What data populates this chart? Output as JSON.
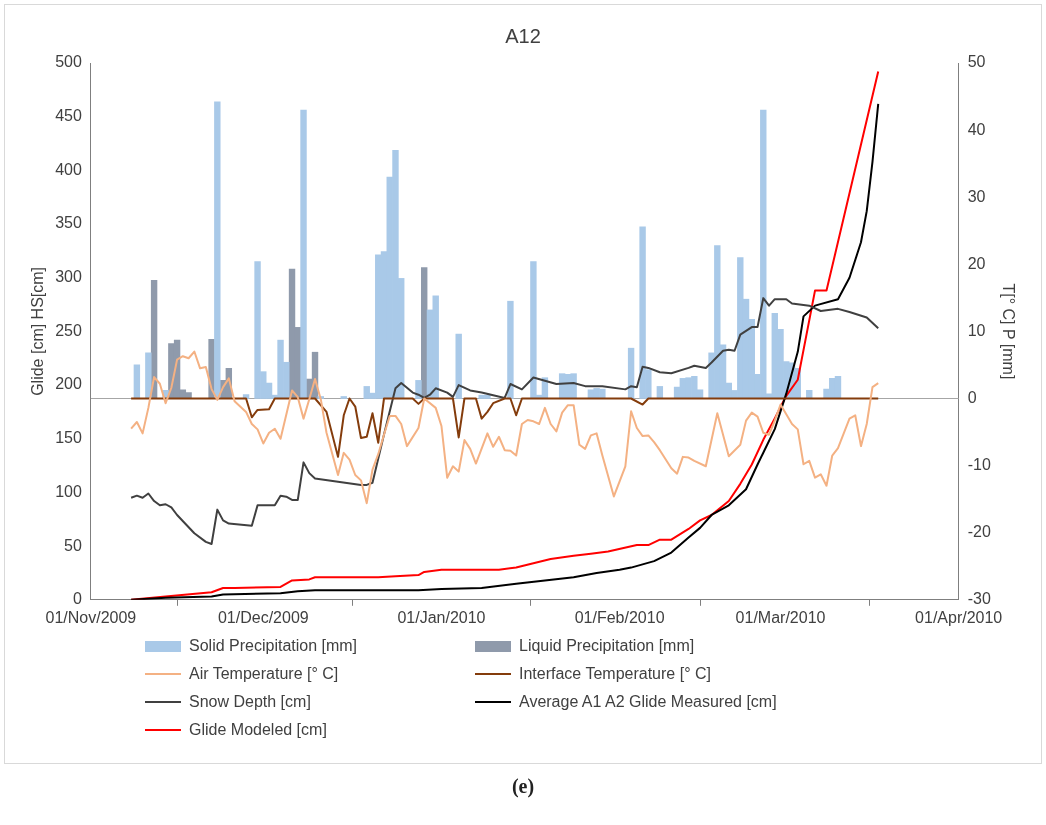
{
  "chart_data": {
    "type": "line",
    "title": "A12",
    "ylabel": "Glide [cm] HS[cm]",
    "y2label": "T[° C] P [mm]",
    "xlim": [
      "2009-11-01",
      "2010-04-01"
    ],
    "xticks": [
      {
        "value": "2009-11-01",
        "label": "01/Nov/2009"
      },
      {
        "value": "2009-12-01",
        "label": "01/Dec/2009"
      },
      {
        "value": "2010-01-01",
        "label": "01/Jan/2010"
      },
      {
        "value": "2010-02-01",
        "label": "01/Feb/2010"
      },
      {
        "value": "2010-03-01",
        "label": "01/Mar/2010"
      },
      {
        "value": "2010-04-01",
        "label": "01/Apr/2010"
      }
    ],
    "ylim": [
      0,
      500
    ],
    "yticks": [
      0,
      50,
      100,
      150,
      200,
      250,
      300,
      350,
      400,
      450,
      500
    ],
    "y2lim": [
      -30,
      50
    ],
    "y2ticks": [
      -30,
      -20,
      -10,
      0,
      10,
      20,
      30,
      40,
      50
    ],
    "grid": false,
    "legend": "bottom",
    "marker": "none",
    "line_style": "solid",
    "ref_lines": [
      {
        "axis": "y2",
        "value": 0,
        "color": "#a6a6a6"
      }
    ],
    "annotations": [
      "(e)"
    ],
    "series": [
      {
        "name": "Solid Precipitation [mm]",
        "type": "bar",
        "axis": "y2",
        "color": "#a9c9e8",
        "x": [
          "2009-11-09",
          "2009-11-11",
          "2009-11-14",
          "2009-11-23",
          "2009-11-28",
          "2009-11-30",
          "2009-12-01",
          "2009-12-02",
          "2009-12-03",
          "2009-12-04",
          "2009-12-05",
          "2009-12-08",
          "2009-12-11",
          "2009-12-15",
          "2009-12-19",
          "2009-12-20",
          "2009-12-21",
          "2009-12-22",
          "2009-12-23",
          "2009-12-24",
          "2009-12-25",
          "2009-12-28",
          "2009-12-30",
          "2009-12-31",
          "2010-01-04",
          "2010-01-08",
          "2010-01-09",
          "2010-01-13",
          "2010-01-17",
          "2010-01-18",
          "2010-01-19",
          "2010-01-22",
          "2010-01-23",
          "2010-01-24",
          "2010-01-27",
          "2010-01-28",
          "2010-01-29",
          "2010-02-03",
          "2010-02-05",
          "2010-02-06",
          "2010-02-08",
          "2010-02-11",
          "2010-02-12",
          "2010-02-13",
          "2010-02-14",
          "2010-02-15",
          "2010-02-17",
          "2010-02-18",
          "2010-02-19",
          "2010-02-20",
          "2010-02-21",
          "2010-02-22",
          "2010-02-23",
          "2010-02-24",
          "2010-02-25",
          "2010-02-26",
          "2010-02-27",
          "2010-02-28",
          "2010-03-01",
          "2010-03-02",
          "2010-03-03",
          "2010-03-04",
          "2010-03-06",
          "2010-03-09",
          "2010-03-10",
          "2010-03-11"
        ],
        "values": [
          5,
          6.8,
          1.2,
          44.2,
          0.6,
          20.4,
          4,
          2.3,
          0.5,
          8.7,
          5.4,
          43,
          0.3,
          0.3,
          1.8,
          0.8,
          21.4,
          21.9,
          33,
          37,
          17.9,
          2.7,
          13.2,
          15.3,
          9.6,
          0.5,
          0.5,
          14.5,
          20.4,
          0.5,
          3.1,
          3.7,
          3.6,
          3.7,
          1.3,
          1.5,
          1.4,
          7.5,
          25.6,
          4.3,
          1.8,
          1.7,
          3,
          3.1,
          3.3,
          1.3,
          6.8,
          22.8,
          8,
          2.3,
          1.2,
          21,
          14.8,
          11.8,
          3.6,
          43,
          0.7,
          12.7,
          10.3,
          5.5,
          5.3,
          4.5,
          1.2,
          1.4,
          3,
          3.3
        ]
      },
      {
        "name": "Liquid Precipitation [mm]",
        "type": "bar",
        "axis": "y2",
        "color": "#8f9aab",
        "x": [
          "2009-11-12",
          "2009-11-15",
          "2009-11-16",
          "2009-11-17",
          "2009-11-18",
          "2009-11-22",
          "2009-11-24",
          "2009-11-25",
          "2009-12-06",
          "2009-12-07",
          "2009-12-09",
          "2009-12-10",
          "2009-12-29"
        ],
        "values": [
          17.6,
          8.2,
          8.7,
          1.3,
          0.9,
          8.8,
          2.7,
          4.5,
          19.3,
          10.6,
          2.9,
          6.9,
          19.5
        ]
      },
      {
        "name": "Air Temperature [° C]",
        "axis": "y2",
        "color": "#f4b183",
        "x": [
          "2009-11-08",
          "2009-11-09",
          "2009-11-10",
          "2009-11-11",
          "2009-11-12",
          "2009-11-13",
          "2009-11-14",
          "2009-11-15",
          "2009-11-16",
          "2009-11-17",
          "2009-11-18",
          "2009-11-19",
          "2009-11-20",
          "2009-11-21",
          "2009-11-22",
          "2009-11-23",
          "2009-11-24",
          "2009-11-25",
          "2009-11-26",
          "2009-11-28",
          "2009-11-29",
          "2009-11-30",
          "2009-12-01",
          "2009-12-02",
          "2009-12-03",
          "2009-12-04",
          "2009-12-06",
          "2009-12-07",
          "2009-12-08",
          "2009-12-09",
          "2009-12-10",
          "2009-12-11",
          "2009-12-12",
          "2009-12-14",
          "2009-12-15",
          "2009-12-16",
          "2009-12-17",
          "2009-12-18",
          "2009-12-19",
          "2009-12-20",
          "2009-12-21",
          "2009-12-22",
          "2009-12-23",
          "2009-12-24",
          "2009-12-25",
          "2009-12-26",
          "2009-12-28",
          "2009-12-29",
          "2009-12-31",
          "2010-01-01",
          "2010-01-02",
          "2010-01-03",
          "2010-01-04",
          "2010-01-05",
          "2010-01-06",
          "2010-01-07",
          "2010-01-09",
          "2010-01-10",
          "2010-01-11",
          "2010-01-12",
          "2010-01-13",
          "2010-01-14",
          "2010-01-15",
          "2010-01-16",
          "2010-01-17",
          "2010-01-18",
          "2010-01-19",
          "2010-01-20",
          "2010-01-21",
          "2010-01-22",
          "2010-01-23",
          "2010-01-24",
          "2010-01-25",
          "2010-01-26",
          "2010-01-27",
          "2010-01-28",
          "2010-01-29",
          "2010-01-31",
          "2010-02-02",
          "2010-02-03",
          "2010-02-04",
          "2010-02-05",
          "2010-02-06",
          "2010-02-07",
          "2010-02-08",
          "2010-02-10",
          "2010-02-11",
          "2010-02-12",
          "2010-02-13",
          "2010-02-14",
          "2010-02-16",
          "2010-02-18",
          "2010-02-20",
          "2010-02-22",
          "2010-02-23",
          "2010-02-24",
          "2010-02-25",
          "2010-02-26",
          "2010-02-27",
          "2010-02-28",
          "2010-03-01",
          "2010-03-03",
          "2010-03-04",
          "2010-03-05",
          "2010-03-06",
          "2010-03-07",
          "2010-03-08",
          "2010-03-09",
          "2010-03-10",
          "2010-03-11",
          "2010-03-13",
          "2010-03-14",
          "2010-03-15",
          "2010-03-16",
          "2010-03-17",
          "2010-03-18"
        ],
        "values": [
          -4.5,
          -3.5,
          -5.2,
          -1.4,
          3.2,
          2.2,
          -0.7,
          1.6,
          5.8,
          6.3,
          6,
          7,
          4.5,
          4.7,
          1.4,
          -0.2,
          1.7,
          3,
          -0.4,
          -2,
          -3.8,
          -4.6,
          -6.7,
          -5.1,
          -4.5,
          -6,
          1.2,
          0.2,
          -3,
          -0.1,
          2.9,
          -0.1,
          -5.1,
          -11.4,
          -8.1,
          -9.1,
          -11.4,
          -12.2,
          -15.6,
          -10.6,
          -8.3,
          -5.4,
          -2.6,
          -2.6,
          -3.8,
          -7.1,
          -4.4,
          0,
          -1.4,
          -4.1,
          -11.8,
          -10.1,
          -10.9,
          -6.2,
          -7.5,
          -9.7,
          -5.2,
          -7.2,
          -5.7,
          -7.7,
          -7.8,
          -8.5,
          -3.8,
          -3.2,
          -3.4,
          -3.8,
          -1.4,
          -3.8,
          -4.9,
          -2.1,
          -1,
          -1,
          -6.9,
          -7.5,
          -5.5,
          -5.2,
          -8.5,
          -14.6,
          -10.1,
          -1.9,
          -4.4,
          -5.6,
          -5.5,
          -6.5,
          -7.7,
          -10.4,
          -11.2,
          -8.7,
          -8.8,
          -9.3,
          -10.1,
          -2.2,
          -8.6,
          -6.9,
          -3.3,
          -2.1,
          -2.7,
          -5.1,
          -5.4,
          -3.3,
          -0.9,
          -3.8,
          -4.6,
          -9.8,
          -9.3,
          -11.8,
          -11.3,
          -13,
          -8.5,
          -7.4,
          -3,
          -2.5,
          -7.1,
          -3.8,
          1.7,
          2.3
        ]
      },
      {
        "name": "Interface Temperature [° C]",
        "axis": "y2",
        "color": "#843c0c",
        "x": [
          "2009-11-08",
          "2009-11-28",
          "2009-11-29",
          "2009-11-30",
          "2009-12-02",
          "2009-12-03",
          "2009-12-10",
          "2009-12-12",
          "2009-12-14",
          "2009-12-15",
          "2009-12-16",
          "2009-12-17",
          "2009-12-18",
          "2009-12-19",
          "2009-12-20",
          "2009-12-21",
          "2009-12-22",
          "2009-12-27",
          "2009-12-28",
          "2009-12-29",
          "2010-01-03",
          "2010-01-04",
          "2010-01-05",
          "2010-01-07",
          "2010-01-08",
          "2010-01-09",
          "2010-01-10",
          "2010-01-12",
          "2010-01-13",
          "2010-01-14",
          "2010-01-15",
          "2010-02-03",
          "2010-02-05",
          "2010-02-06",
          "2010-03-18"
        ],
        "values": [
          0,
          0,
          -2.8,
          -1.7,
          -1.6,
          0,
          0,
          -2,
          -8.7,
          -2.5,
          0,
          -1.2,
          -5.9,
          -5.7,
          -2.2,
          -6.6,
          0,
          0,
          -0.8,
          0,
          0,
          -5.8,
          0,
          0,
          -3,
          -2,
          -0.7,
          0,
          0,
          -2.5,
          0,
          0,
          -0.9,
          0,
          0
        ]
      },
      {
        "name": "Snow Depth [cm]",
        "axis": "y",
        "color": "#404040",
        "x": [
          "2009-11-08",
          "2009-11-09",
          "2009-11-10",
          "2009-11-11",
          "2009-11-12",
          "2009-11-13",
          "2009-11-14",
          "2009-11-15",
          "2009-11-16",
          "2009-11-19",
          "2009-11-21",
          "2009-11-22",
          "2009-11-23",
          "2009-11-24",
          "2009-11-25",
          "2009-11-29",
          "2009-11-30",
          "2009-12-03",
          "2009-12-04",
          "2009-12-05",
          "2009-12-06",
          "2009-12-07",
          "2009-12-08",
          "2009-12-09",
          "2009-12-10",
          "2009-12-18",
          "2009-12-19",
          "2009-12-20",
          "2009-12-22",
          "2009-12-24",
          "2009-12-25",
          "2009-12-27",
          "2009-12-28",
          "2009-12-29",
          "2009-12-30",
          "2009-12-31",
          "2010-01-02",
          "2010-01-03",
          "2010-01-04",
          "2010-01-06",
          "2010-01-08",
          "2010-01-12",
          "2010-01-13",
          "2010-01-15",
          "2010-01-17",
          "2010-01-19",
          "2010-01-21",
          "2010-01-24",
          "2010-01-26",
          "2010-01-29",
          "2010-02-02",
          "2010-02-03",
          "2010-02-04",
          "2010-02-05",
          "2010-02-06",
          "2010-02-08",
          "2010-02-10",
          "2010-02-13",
          "2010-02-14",
          "2010-02-16",
          "2010-02-17",
          "2010-02-19",
          "2010-02-20",
          "2010-02-21",
          "2010-02-22",
          "2010-02-24",
          "2010-02-25",
          "2010-02-26",
          "2010-02-27",
          "2010-02-28",
          "2010-03-02",
          "2010-03-03",
          "2010-03-06",
          "2010-03-08",
          "2010-03-11",
          "2010-03-13",
          "2010-03-16",
          "2010-03-18"
        ],
        "values": [
          95,
          97,
          95,
          99,
          92,
          88,
          89,
          86,
          79,
          62,
          54,
          52,
          84,
          74,
          71,
          69,
          88,
          88,
          97,
          96,
          93,
          93,
          128,
          118,
          113,
          107,
          107,
          109,
          154,
          197,
          202,
          193,
          191,
          188,
          191,
          197,
          193,
          189,
          200,
          195,
          193,
          188,
          201,
          196,
          207,
          204,
          201,
          202,
          199,
          199,
          196,
          199,
          198,
          217,
          216,
          212,
          211,
          216,
          218,
          216,
          221,
          232,
          233,
          232,
          247,
          254,
          254,
          281,
          274,
          280,
          280,
          276,
          274,
          269,
          271,
          268,
          263,
          253
        ]
      },
      {
        "name": "Average A1 A2 Glide Measured [cm]",
        "axis": "y",
        "color": "#000000",
        "x": [
          "2009-11-08",
          "2009-11-14",
          "2009-11-22",
          "2009-11-24",
          "2009-12-04",
          "2009-12-07",
          "2009-12-10",
          "2009-12-28",
          "2010-01-01",
          "2010-01-08",
          "2010-01-14",
          "2010-01-19",
          "2010-01-24",
          "2010-01-28",
          "2010-02-01",
          "2010-02-03",
          "2010-02-07",
          "2010-02-10",
          "2010-02-13",
          "2010-02-15",
          "2010-02-17",
          "2010-02-20",
          "2010-02-23",
          "2010-02-25",
          "2010-02-28",
          "2010-03-02",
          "2010-03-04",
          "2010-03-05",
          "2010-03-07",
          "2010-03-11",
          "2010-03-13",
          "2010-03-15",
          "2010-03-16",
          "2010-03-17",
          "2010-03-18"
        ],
        "values": [
          0,
          2,
          3,
          5,
          6,
          8,
          9,
          9,
          10,
          11,
          15,
          18,
          21,
          25,
          28,
          30,
          36,
          44,
          58,
          67,
          79,
          88,
          103,
          126,
          159,
          192,
          231,
          264,
          274,
          280,
          300,
          333,
          362,
          408,
          462
        ]
      },
      {
        "name": "Glide Modeled [cm]",
        "axis": "y",
        "color": "#ff0000",
        "x": [
          "2009-11-08",
          "2009-11-14",
          "2009-11-22",
          "2009-11-24",
          "2009-11-26",
          "2009-12-04",
          "2009-12-06",
          "2009-12-09",
          "2009-12-10",
          "2009-12-21",
          "2009-12-24",
          "2009-12-28",
          "2009-12-29",
          "2010-01-01",
          "2010-01-11",
          "2010-01-14",
          "2010-01-17",
          "2010-01-20",
          "2010-01-24",
          "2010-01-27",
          "2010-01-30",
          "2010-02-04",
          "2010-02-06",
          "2010-02-08",
          "2010-02-10",
          "2010-02-13",
          "2010-02-15",
          "2010-02-17",
          "2010-02-20",
          "2010-02-22",
          "2010-02-24",
          "2010-02-26",
          "2010-02-28",
          "2010-03-02",
          "2010-03-04",
          "2010-03-07",
          "2010-03-09",
          "2010-03-18"
        ],
        "values": [
          0,
          3,
          7,
          11,
          11,
          12,
          18,
          19,
          21,
          21,
          22,
          23,
          26,
          28,
          28,
          30,
          34,
          38,
          41,
          43,
          45,
          51,
          51,
          56,
          56,
          66,
          74,
          79,
          92,
          108,
          126,
          149,
          169,
          190,
          205,
          288,
          288,
          492
        ]
      }
    ]
  }
}
